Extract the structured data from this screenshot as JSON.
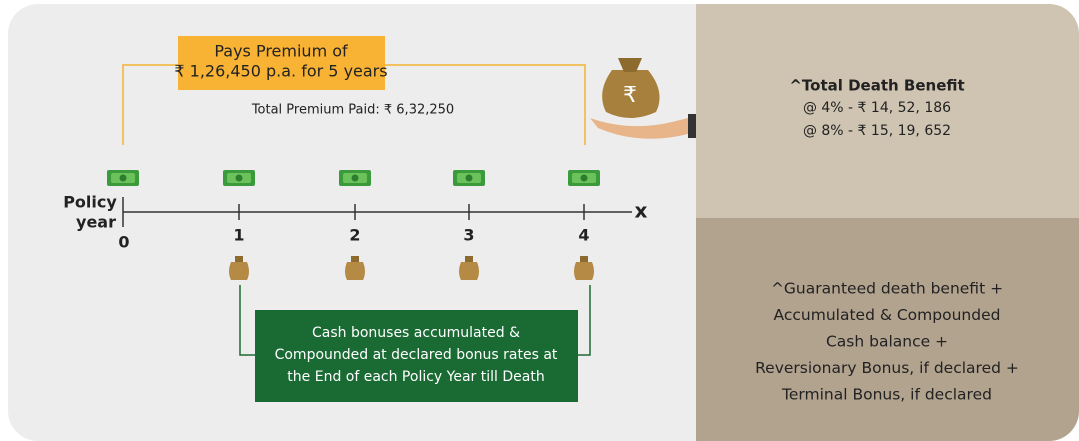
{
  "premium_box": {
    "lines": [
      "Pays Premium of",
      "₹ 1,26,450 p.a. for 5 years"
    ]
  },
  "total_premium": "Total Premium Paid: ₹ 6,32,250",
  "axis": {
    "label_lines": [
      "Policy",
      "year"
    ],
    "end_label": "x",
    "years": [
      0,
      1,
      2,
      3,
      4
    ]
  },
  "bonus_box": {
    "lines": [
      "Cash bonuses accumulated &",
      "Compounded at declared bonus rates at",
      "the End of each Policy Year till Death"
    ]
  },
  "death_benefit": {
    "title": "^Total Death Benefit",
    "lines": [
      "@ 4% - ₹ 14, 52, 186",
      "@ 8% - ₹ 15, 19, 652"
    ]
  },
  "benefit_formula": {
    "lines": [
      "^Guaranteed death benefit +",
      "Accumulated & Compounded",
      "Cash balance +",
      "Reversionary Bonus, if declared +",
      "Terminal Bonus, if declared"
    ]
  }
}
